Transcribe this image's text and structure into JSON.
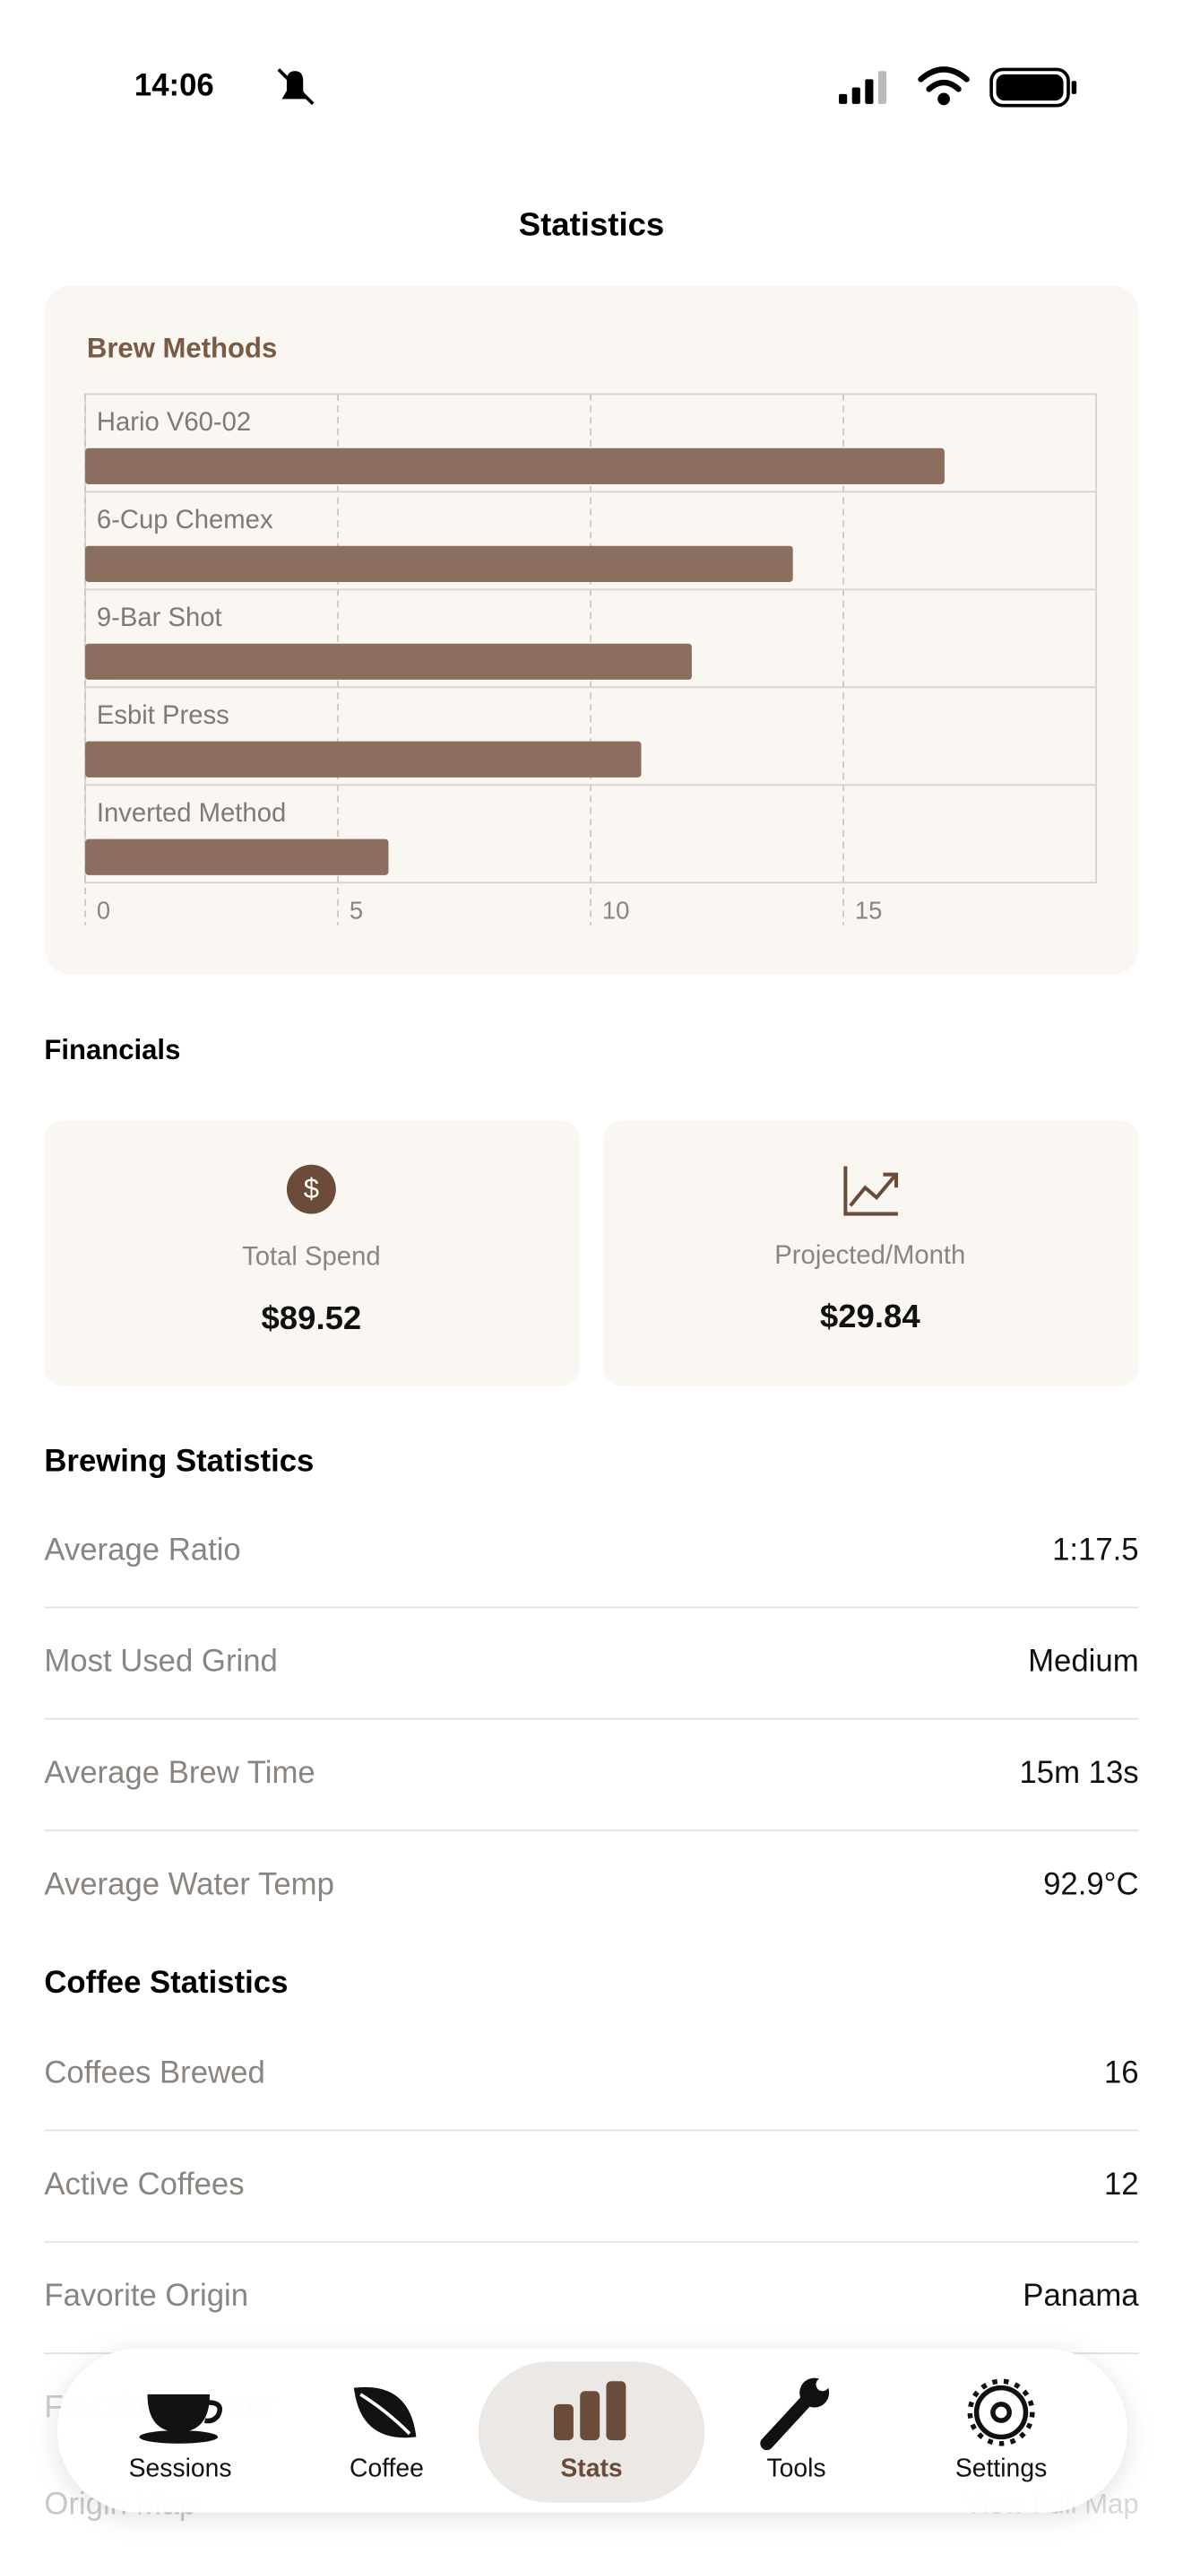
{
  "status_bar": {
    "time": "14:06"
  },
  "header": {
    "title": "Statistics"
  },
  "brew_methods": {
    "title": "Brew Methods"
  },
  "chart_data": {
    "type": "bar",
    "orientation": "horizontal",
    "categories": [
      "Hario V60-02",
      "6-Cup Chemex",
      "9-Bar Shot",
      "Esbit Press",
      "Inverted Method"
    ],
    "values": [
      17,
      14,
      12,
      11,
      6
    ],
    "color": "#8b6e5e",
    "xlim": [
      0,
      20
    ],
    "xticks": [
      0,
      5,
      10,
      15
    ],
    "grid": true
  },
  "financials": {
    "title": "Financials",
    "cards": [
      {
        "label": "Total Spend",
        "value": "$89.52"
      },
      {
        "label": "Projected/Month",
        "value": "$29.84"
      }
    ]
  },
  "brewing_statistics": {
    "title": "Brewing Statistics",
    "rows": [
      [
        "Average Ratio",
        "1:17.5"
      ],
      [
        "Most Used Grind",
        "Medium"
      ],
      [
        "Average Brew Time",
        "15m 13s"
      ],
      [
        "Average Water Temp",
        "92.9°C"
      ]
    ]
  },
  "coffee_statistics": {
    "title": "Coffee Statistics",
    "rows": [
      [
        "Coffees Brewed",
        "16"
      ],
      [
        "Active Coffees",
        "12"
      ],
      [
        "Favorite Origin",
        "Panama"
      ],
      [
        "Favorite Roaster",
        ""
      ]
    ]
  },
  "origin_map": {
    "label": "Origin Map",
    "link": "View Full Map"
  },
  "tab_bar": {
    "tabs": [
      "Sessions",
      "Coffee",
      "Stats",
      "Tools",
      "Settings"
    ],
    "selected": 2
  }
}
